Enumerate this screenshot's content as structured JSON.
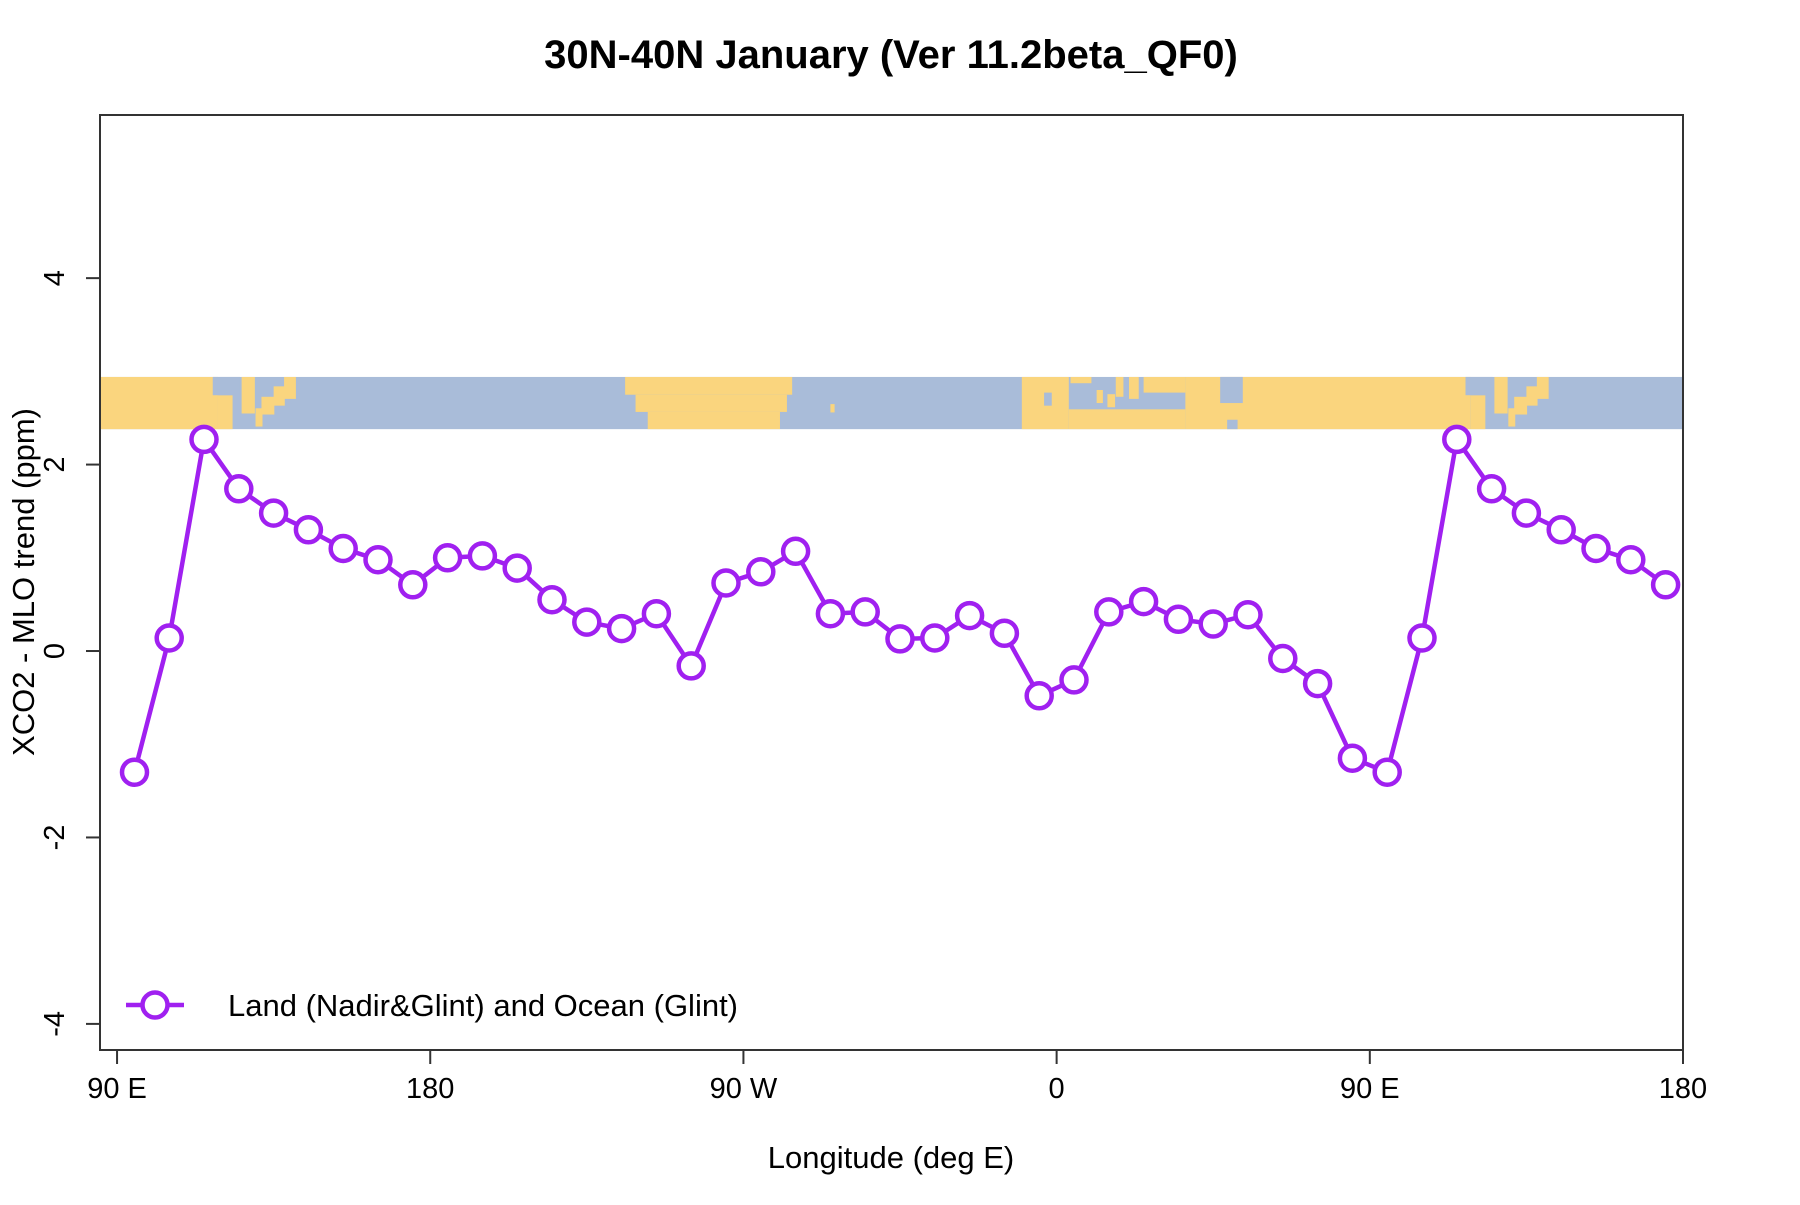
{
  "chart_data": {
    "type": "line",
    "title": "30N-40N January (Ver 11.2beta_QF0)",
    "xlabel": "Longitude (deg E)",
    "ylabel": "XCO2 - MLO trend (ppm)",
    "xlim": [
      85.1,
      540
    ],
    "ylim": [
      -4.28,
      5.75
    ],
    "grid": false,
    "legend_position": "bottom-left",
    "x_ticks": [
      {
        "value": 90,
        "label": "90 E"
      },
      {
        "value": 180,
        "label": "180"
      },
      {
        "value": 270,
        "label": "90 W"
      },
      {
        "value": 360,
        "label": "0"
      },
      {
        "value": 450,
        "label": "90 E"
      },
      {
        "value": 540,
        "label": "180"
      }
    ],
    "y_ticks": [
      {
        "value": 4,
        "label": "4"
      },
      {
        "value": 2,
        "label": "2"
      },
      {
        "value": 0,
        "label": "0"
      },
      {
        "value": -2,
        "label": "-2"
      },
      {
        "value": -4,
        "label": "-4"
      }
    ],
    "series": [
      {
        "name": "Land (Nadir&Glint) and Ocean (Glint)",
        "color": "#A020F0",
        "marker": "open-circle",
        "x": [
          95,
          105,
          115,
          125,
          135,
          145,
          155,
          165,
          175,
          185,
          195,
          205,
          215,
          225,
          235,
          245,
          255,
          265,
          275,
          285,
          295,
          305,
          315,
          325,
          335,
          345,
          355,
          365,
          375,
          385,
          395,
          405,
          415,
          425,
          435,
          445,
          455,
          465,
          475,
          485,
          495,
          505,
          515,
          525,
          535
        ],
        "y": [
          -1.3,
          0.14,
          2.27,
          1.74,
          1.48,
          1.3,
          1.1,
          0.98,
          0.71,
          1.0,
          1.02,
          0.89,
          0.55,
          0.31,
          0.24,
          0.4,
          -0.16,
          0.73,
          0.85,
          1.07,
          0.4,
          0.42,
          0.13,
          0.14,
          0.38,
          0.19,
          -0.48,
          -0.31,
          0.42,
          0.53,
          0.34,
          0.29,
          0.39,
          -0.08,
          -0.35,
          -1.15,
          -1.3,
          0.14,
          2.27,
          1.74,
          1.48,
          1.3,
          1.1,
          0.98,
          0.71
        ]
      }
    ],
    "map_band": {
      "description": "30N-40N world-map strip, longitude wrapped 90E->180->90W->0->90E->180",
      "v_top": 2.94,
      "v_bottom": 2.38,
      "ocean_color": "#A9BCD9",
      "land_color": "#FAD57E",
      "land_segments": [
        [
          85.1,
          119,
          0,
          1
        ],
        [
          119,
          123.2,
          0.35,
          1
        ],
        [
          125.8,
          129.6,
          0,
          0.7
        ],
        [
          129.8,
          131.8,
          0.6,
          0.95
        ],
        [
          131.5,
          135.2,
          0.38,
          0.72
        ],
        [
          135.0,
          138.2,
          0.18,
          0.55
        ],
        [
          138.0,
          141.4,
          0,
          0.42
        ],
        [
          236,
          284,
          0,
          0.34
        ],
        [
          239,
          282.5,
          0.34,
          0.67
        ],
        [
          242.5,
          280.5,
          0.67,
          1
        ],
        [
          295,
          296.2,
          0.52,
          0.68
        ],
        [
          350,
          363.5,
          0,
          1
        ],
        [
          363.5,
          397,
          0.62,
          1
        ],
        [
          364,
          370,
          0,
          0.12
        ],
        [
          371.5,
          373.3,
          0.25,
          0.5
        ],
        [
          374.6,
          376.8,
          0.33,
          0.58
        ],
        [
          377,
          379.2,
          0,
          0.38
        ],
        [
          380.8,
          383.6,
          0,
          0.42
        ],
        [
          385,
          397,
          0,
          0.3
        ],
        [
          397,
          479,
          0,
          1
        ],
        [
          479,
          483.2,
          0.35,
          1
        ],
        [
          485.8,
          489.6,
          0,
          0.7
        ],
        [
          489.8,
          491.8,
          0.6,
          0.95
        ],
        [
          491.5,
          495.2,
          0.38,
          0.72
        ],
        [
          495.0,
          498.2,
          0.18,
          0.55
        ],
        [
          498.0,
          501.4,
          0,
          0.42
        ]
      ],
      "ocean_patches": [
        [
          117.5,
          125.3,
          0,
          0.35
        ],
        [
          356.4,
          358.6,
          0.3,
          0.55
        ],
        [
          407,
          413.5,
          0,
          0.5
        ],
        [
          409,
          412,
          0.82,
          1
        ],
        [
          477.5,
          485.3,
          0,
          0.35
        ]
      ]
    }
  },
  "legend": {
    "label": "Land (Nadir&Glint) and Ocean (Glint)"
  }
}
